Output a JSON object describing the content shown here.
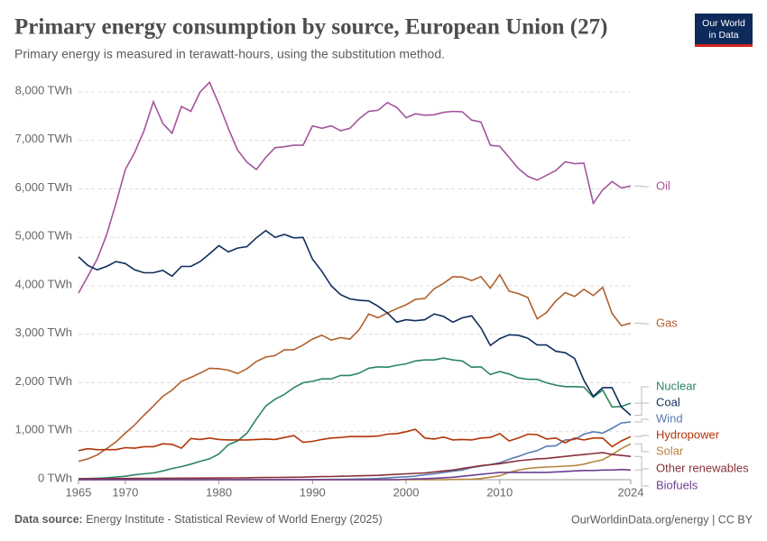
{
  "chart_data": {
    "type": "line",
    "title": "Primary energy consumption by source, European Union (27)",
    "subtitle": "Primary energy is measured in terawatt-hours, using the substitution method.",
    "logo": [
      "Our World",
      "in Data"
    ],
    "source_label": "Data source:",
    "source": "Energy Institute - Statistical Review of World Energy (2025)",
    "footer_right": "OurWorldinData.org/energy | CC BY",
    "x": [
      1965,
      1966,
      1967,
      1968,
      1969,
      1970,
      1971,
      1972,
      1973,
      1974,
      1975,
      1976,
      1977,
      1978,
      1979,
      1980,
      1981,
      1982,
      1983,
      1984,
      1985,
      1986,
      1987,
      1988,
      1989,
      1990,
      1991,
      1992,
      1993,
      1994,
      1995,
      1996,
      1997,
      1998,
      1999,
      2000,
      2001,
      2002,
      2003,
      2004,
      2005,
      2006,
      2007,
      2008,
      2009,
      2010,
      2011,
      2012,
      2013,
      2014,
      2015,
      2016,
      2017,
      2018,
      2019,
      2020,
      2021,
      2022,
      2023,
      2024
    ],
    "xlim": [
      1965,
      2024
    ],
    "xticks": [
      1965,
      1970,
      1980,
      1990,
      2000,
      2010,
      2024
    ],
    "ylim": [
      0,
      8000
    ],
    "yticks": [
      {
        "value": 0,
        "label": "0 TWh"
      },
      {
        "value": 1000,
        "label": "1,000 TWh"
      },
      {
        "value": 2000,
        "label": "2,000 TWh"
      },
      {
        "value": 3000,
        "label": "3,000 TWh"
      },
      {
        "value": 4000,
        "label": "4,000 TWh"
      },
      {
        "value": 5000,
        "label": "5,000 TWh"
      },
      {
        "value": 6000,
        "label": "6,000 TWh"
      },
      {
        "value": 7000,
        "label": "7,000 TWh"
      },
      {
        "value": 8000,
        "label": "8,000 TWh"
      }
    ],
    "grid": true,
    "series": [
      {
        "name": "Oil",
        "color": "#a2559c",
        "values": [
          3850,
          4200,
          4550,
          5050,
          5700,
          6400,
          6750,
          7200,
          7800,
          7350,
          7150,
          7700,
          7600,
          8000,
          8200,
          7750,
          7250,
          6800,
          6550,
          6400,
          6650,
          6850,
          6870,
          6900,
          6900,
          7300,
          7250,
          7300,
          7200,
          7250,
          7450,
          7600,
          7620,
          7780,
          7680,
          7470,
          7550,
          7520,
          7530,
          7580,
          7600,
          7590,
          7420,
          7380,
          6900,
          6880,
          6650,
          6420,
          6260,
          6180,
          6280,
          6380,
          6560,
          6520,
          6530,
          5700,
          5980,
          6150,
          6020,
          6060
        ]
      },
      {
        "name": "Gas",
        "color": "#b0602d",
        "values": [
          380,
          430,
          510,
          640,
          780,
          960,
          1130,
          1330,
          1520,
          1720,
          1850,
          2030,
          2110,
          2200,
          2300,
          2290,
          2260,
          2190,
          2290,
          2440,
          2530,
          2560,
          2680,
          2680,
          2780,
          2900,
          2980,
          2880,
          2930,
          2900,
          3100,
          3420,
          3340,
          3440,
          3530,
          3610,
          3720,
          3740,
          3940,
          4050,
          4190,
          4180,
          4110,
          4190,
          3950,
          4230,
          3890,
          3840,
          3760,
          3320,
          3450,
          3690,
          3860,
          3780,
          3930,
          3800,
          3970,
          3430,
          3180,
          3230
        ]
      },
      {
        "name": "Nuclear",
        "color": "#2c8465",
        "values": [
          20,
          25,
          30,
          40,
          55,
          70,
          100,
          120,
          140,
          180,
          230,
          270,
          320,
          380,
          430,
          530,
          720,
          800,
          960,
          1250,
          1520,
          1660,
          1760,
          1900,
          2000,
          2030,
          2080,
          2080,
          2150,
          2150,
          2200,
          2300,
          2330,
          2320,
          2360,
          2390,
          2450,
          2470,
          2470,
          2510,
          2470,
          2450,
          2320,
          2330,
          2170,
          2230,
          2180,
          2100,
          2070,
          2070,
          2000,
          1950,
          1920,
          1920,
          1910,
          1700,
          1850,
          1500,
          1510,
          1580
        ]
      },
      {
        "name": "Coal",
        "color": "#0f2d5c",
        "values": [
          4600,
          4420,
          4330,
          4400,
          4500,
          4460,
          4330,
          4270,
          4270,
          4320,
          4200,
          4400,
          4400,
          4500,
          4660,
          4830,
          4700,
          4780,
          4810,
          4990,
          5140,
          5000,
          5060,
          4990,
          5000,
          4550,
          4300,
          4000,
          3820,
          3730,
          3700,
          3690,
          3580,
          3440,
          3250,
          3300,
          3280,
          3300,
          3420,
          3370,
          3250,
          3340,
          3380,
          3130,
          2770,
          2910,
          2990,
          2980,
          2920,
          2780,
          2780,
          2650,
          2620,
          2500,
          2050,
          1720,
          1900,
          1900,
          1500,
          1330
        ]
      },
      {
        "name": "Wind",
        "color": "#5b79b0",
        "values": [
          0,
          0,
          0,
          0,
          0,
          0,
          0,
          0,
          0,
          0,
          0,
          0,
          0,
          0,
          0,
          0,
          0,
          0,
          0,
          0,
          0,
          0,
          0,
          0,
          0,
          2,
          3,
          5,
          7,
          10,
          15,
          18,
          25,
          35,
          50,
          60,
          75,
          100,
          120,
          150,
          175,
          200,
          250,
          280,
          310,
          350,
          420,
          480,
          550,
          600,
          690,
          700,
          820,
          830,
          940,
          990,
          960,
          1060,
          1170,
          1190
        ]
      },
      {
        "name": "Hydropower",
        "color": "#b13507",
        "values": [
          600,
          640,
          620,
          620,
          620,
          660,
          650,
          680,
          680,
          740,
          730,
          650,
          850,
          830,
          860,
          830,
          820,
          820,
          820,
          830,
          840,
          830,
          870,
          910,
          770,
          790,
          830,
          860,
          870,
          890,
          890,
          890,
          900,
          940,
          950,
          990,
          1040,
          860,
          840,
          880,
          820,
          830,
          820,
          860,
          870,
          950,
          800,
          860,
          940,
          930,
          840,
          860,
          760,
          860,
          820,
          860,
          860,
          680,
          800,
          890
        ]
      },
      {
        "name": "Solar",
        "color": "#b7863f",
        "values": [
          0,
          0,
          0,
          0,
          0,
          0,
          0,
          0,
          0,
          0,
          0,
          0,
          0,
          0,
          0,
          0,
          0,
          0,
          0,
          0,
          0,
          0,
          0,
          0,
          0,
          0,
          0,
          0,
          0,
          0,
          0,
          0,
          0,
          0,
          0,
          0,
          0,
          0,
          0,
          0,
          5,
          8,
          12,
          25,
          50,
          80,
          150,
          200,
          230,
          250,
          260,
          270,
          280,
          290,
          320,
          370,
          410,
          520,
          640,
          740
        ]
      },
      {
        "name": "Other renewables",
        "color": "#883039",
        "values": [
          20,
          21,
          22,
          23,
          24,
          25,
          26,
          27,
          28,
          29,
          30,
          31,
          32,
          33,
          34,
          35,
          36,
          38,
          40,
          42,
          44,
          46,
          48,
          50,
          52,
          60,
          63,
          66,
          70,
          75,
          80,
          85,
          90,
          100,
          110,
          120,
          130,
          140,
          160,
          180,
          200,
          230,
          260,
          290,
          310,
          330,
          360,
          390,
          410,
          430,
          440,
          460,
          480,
          500,
          520,
          540,
          560,
          520,
          500,
          480
        ]
      },
      {
        "name": "Biofuels",
        "color": "#6d3e91",
        "values": [
          0,
          0,
          0,
          0,
          0,
          0,
          0,
          0,
          0,
          0,
          0,
          0,
          0,
          0,
          0,
          0,
          0,
          0,
          0,
          0,
          0,
          0,
          0,
          0,
          0,
          0,
          0,
          0,
          0,
          0,
          0,
          0,
          0,
          0,
          0,
          10,
          15,
          20,
          30,
          40,
          50,
          70,
          90,
          110,
          130,
          150,
          150,
          150,
          150,
          150,
          150,
          160,
          170,
          180,
          190,
          190,
          200,
          200,
          210,
          200
        ]
      }
    ]
  }
}
